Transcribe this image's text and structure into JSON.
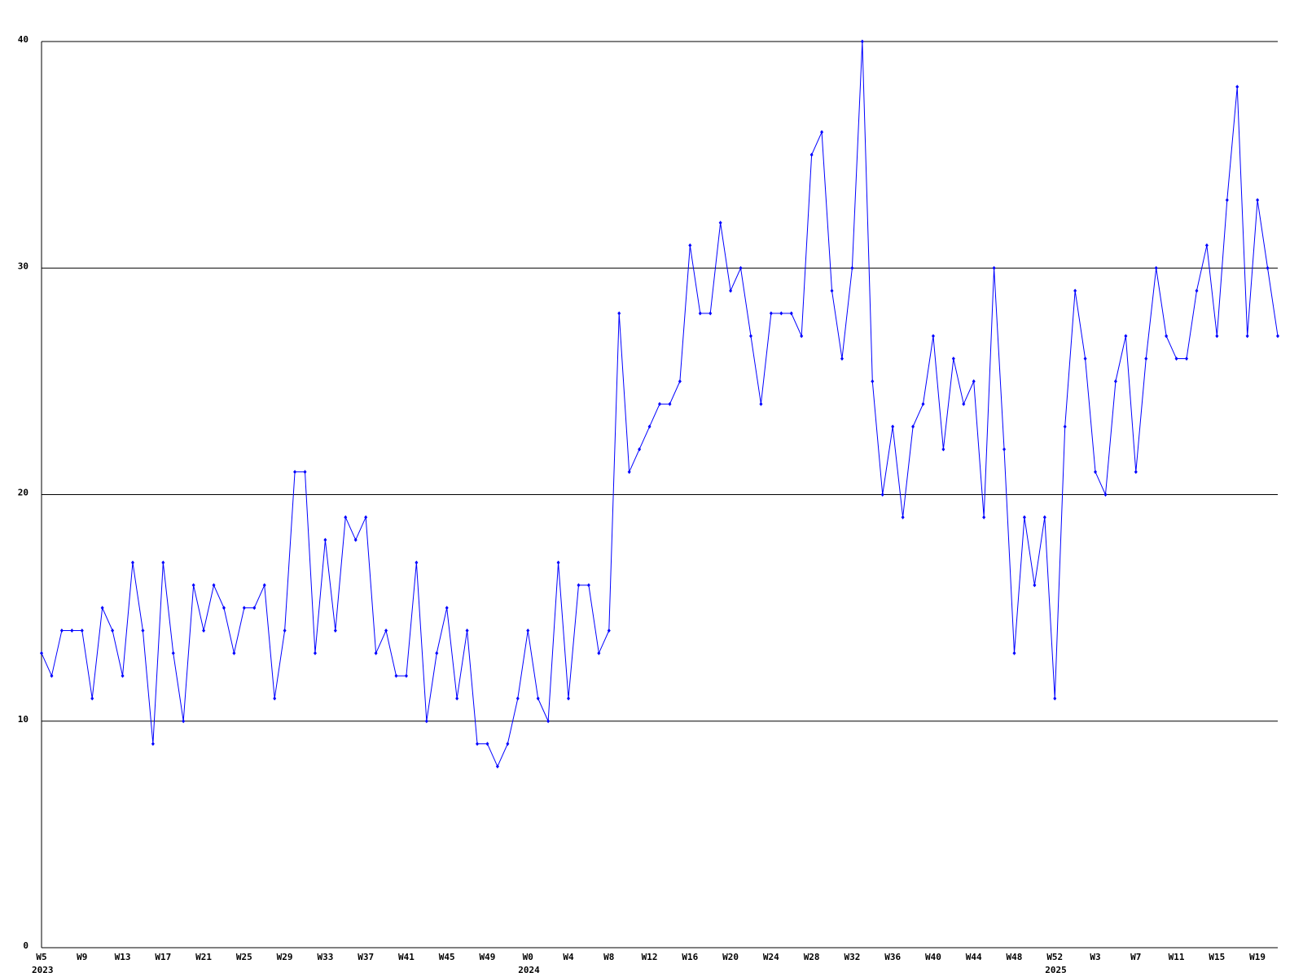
{
  "chart_data": {
    "type": "line",
    "color": "#0000ff",
    "categories": [
      "W5",
      null,
      null,
      null,
      "W9",
      null,
      null,
      null,
      "W13",
      null,
      null,
      null,
      "W17",
      null,
      null,
      null,
      "W21",
      null,
      null,
      null,
      "W25",
      null,
      null,
      null,
      "W29",
      null,
      null,
      null,
      "W33",
      null,
      null,
      null,
      "W37",
      null,
      null,
      null,
      "W41",
      null,
      null,
      null,
      "W45",
      null,
      null,
      null,
      "W49",
      null,
      null,
      null,
      "W0",
      null,
      null,
      null,
      "W4",
      null,
      null,
      null,
      "W8",
      null,
      null,
      null,
      "W12",
      null,
      null,
      null,
      "W16",
      null,
      null,
      null,
      "W20",
      null,
      null,
      null,
      "W24",
      null,
      null,
      null,
      "W28",
      null,
      null,
      null,
      "W32",
      null,
      null,
      null,
      "W36",
      null,
      null,
      null,
      "W40",
      null,
      null,
      null,
      "W44",
      null,
      null,
      null,
      "W48",
      null,
      null,
      null,
      "W52",
      null,
      null,
      null,
      "W3",
      null,
      null,
      null,
      "W7",
      null,
      null,
      null,
      "W11",
      null,
      null,
      null,
      "W15",
      null,
      null,
      null,
      "W19",
      null,
      null
    ],
    "x_group_labels": [
      "2023",
      null,
      null,
      null,
      null,
      null,
      null,
      null,
      null,
      null,
      null,
      null,
      null,
      null,
      null,
      null,
      null,
      null,
      null,
      null,
      null,
      null,
      null,
      null,
      null,
      null,
      null,
      null,
      null,
      null,
      null,
      null,
      null,
      null,
      null,
      null,
      null,
      null,
      null,
      null,
      null,
      null,
      null,
      null,
      null,
      null,
      null,
      null,
      "2024",
      null,
      null,
      null,
      null,
      null,
      null,
      null,
      null,
      null,
      null,
      null,
      null,
      null,
      null,
      null,
      null,
      null,
      null,
      null,
      null,
      null,
      null,
      null,
      null,
      null,
      null,
      null,
      null,
      null,
      null,
      null,
      null,
      null,
      null,
      null,
      null,
      null,
      null,
      null,
      null,
      null,
      null,
      null,
      null,
      null,
      null,
      null,
      null,
      null,
      null,
      null,
      "2025",
      null,
      null,
      null,
      null,
      null,
      null,
      null,
      null,
      null,
      null,
      null,
      null,
      null,
      null,
      null,
      null,
      null,
      null,
      null,
      null,
      null,
      null
    ],
    "values": [
      13,
      12,
      14,
      14,
      14,
      11,
      15,
      14,
      12,
      17,
      14,
      9,
      17,
      13,
      10,
      16,
      14,
      16,
      15,
      13,
      15,
      15,
      16,
      11,
      14,
      21,
      21,
      13,
      18,
      14,
      19,
      18,
      19,
      13,
      14,
      12,
      12,
      17,
      10,
      13,
      15,
      11,
      14,
      9,
      9,
      8,
      9,
      11,
      14,
      11,
      10,
      17,
      11,
      16,
      16,
      13,
      14,
      28,
      21,
      22,
      23,
      24,
      24,
      25,
      31,
      28,
      28,
      32,
      29,
      30,
      27,
      24,
      28,
      28,
      28,
      27,
      35,
      36,
      29,
      26,
      30,
      40,
      25,
      20,
      23,
      19,
      23,
      24,
      27,
      22,
      26,
      24,
      25,
      19,
      30,
      22,
      13,
      19,
      16,
      19,
      11,
      23,
      29,
      26,
      21,
      20,
      25,
      27,
      21,
      26,
      30,
      27,
      26,
      26,
      29,
      31,
      27,
      33,
      38,
      27,
      33,
      30,
      27
    ],
    "ylim": [
      0,
      40
    ],
    "yticks": [
      0,
      10,
      20,
      30,
      40
    ],
    "grid": true
  }
}
